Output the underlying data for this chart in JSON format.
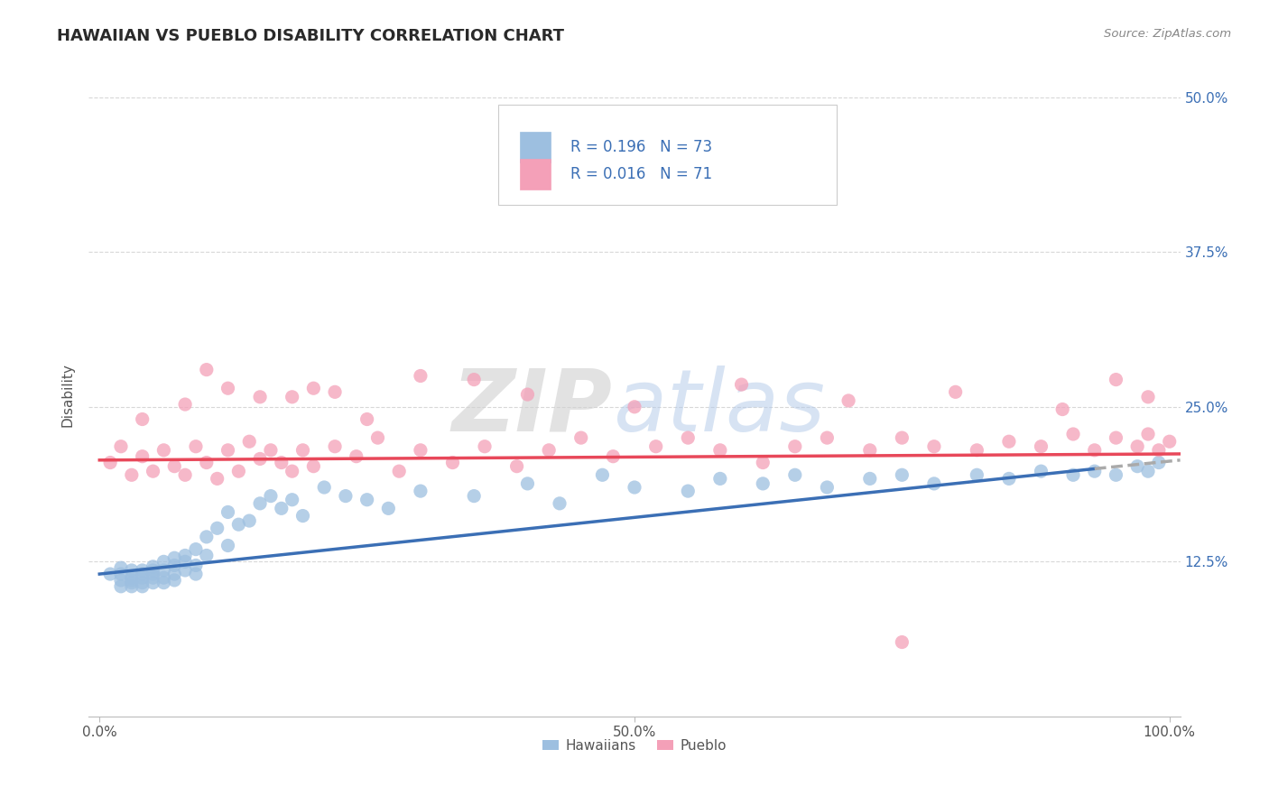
{
  "title": "HAWAIIAN VS PUEBLO DISABILITY CORRELATION CHART",
  "source_text": "Source: ZipAtlas.com",
  "ylabel": "Disability",
  "watermark_zip": "ZIP",
  "watermark_atlas": "atlas",
  "hawaiian_color": "#9dbfe0",
  "pueblo_color": "#f4a0b8",
  "hawaiian_line_color": "#3b6fb5",
  "pueblo_line_color": "#e8485a",
  "legend_text_color": "#3b6fb5",
  "r_hawaiian": 0.196,
  "n_hawaiian": 73,
  "r_pueblo": 0.016,
  "n_pueblo": 71,
  "xlim": [
    -0.01,
    1.01
  ],
  "ylim": [
    0.0,
    0.52
  ],
  "yticks": [
    0.125,
    0.25,
    0.375,
    0.5
  ],
  "ytick_labels": [
    "12.5%",
    "25.0%",
    "37.5%",
    "50.0%"
  ],
  "xtick_positions": [
    0.0,
    0.5,
    1.0
  ],
  "xtick_labels": [
    "0.0%",
    "50.0%",
    "100.0%"
  ],
  "background_color": "#ffffff",
  "grid_color": "#d8d8d8",
  "hawaiian_x": [
    0.01,
    0.02,
    0.02,
    0.02,
    0.02,
    0.03,
    0.03,
    0.03,
    0.03,
    0.03,
    0.04,
    0.04,
    0.04,
    0.04,
    0.04,
    0.05,
    0.05,
    0.05,
    0.05,
    0.05,
    0.06,
    0.06,
    0.06,
    0.06,
    0.07,
    0.07,
    0.07,
    0.07,
    0.08,
    0.08,
    0.08,
    0.09,
    0.09,
    0.09,
    0.1,
    0.1,
    0.11,
    0.12,
    0.12,
    0.13,
    0.14,
    0.15,
    0.16,
    0.17,
    0.18,
    0.19,
    0.21,
    0.23,
    0.25,
    0.27,
    0.3,
    0.35,
    0.4,
    0.43,
    0.47,
    0.5,
    0.55,
    0.58,
    0.62,
    0.65,
    0.68,
    0.72,
    0.75,
    0.78,
    0.82,
    0.85,
    0.88,
    0.91,
    0.93,
    0.95,
    0.97,
    0.98,
    0.99
  ],
  "hawaiian_y": [
    0.115,
    0.12,
    0.11,
    0.105,
    0.115,
    0.108,
    0.112,
    0.105,
    0.118,
    0.11,
    0.115,
    0.108,
    0.112,
    0.118,
    0.105,
    0.115,
    0.108,
    0.112,
    0.118,
    0.121,
    0.118,
    0.125,
    0.112,
    0.108,
    0.122,
    0.128,
    0.115,
    0.11,
    0.13,
    0.118,
    0.125,
    0.135,
    0.122,
    0.115,
    0.145,
    0.13,
    0.152,
    0.165,
    0.138,
    0.155,
    0.158,
    0.172,
    0.178,
    0.168,
    0.175,
    0.162,
    0.185,
    0.178,
    0.175,
    0.168,
    0.182,
    0.178,
    0.188,
    0.172,
    0.195,
    0.185,
    0.182,
    0.192,
    0.188,
    0.195,
    0.185,
    0.192,
    0.195,
    0.188,
    0.195,
    0.192,
    0.198,
    0.195,
    0.198,
    0.195,
    0.202,
    0.198,
    0.205
  ],
  "pueblo_x": [
    0.01,
    0.02,
    0.03,
    0.04,
    0.05,
    0.06,
    0.07,
    0.08,
    0.09,
    0.1,
    0.11,
    0.12,
    0.13,
    0.14,
    0.15,
    0.16,
    0.17,
    0.18,
    0.19,
    0.2,
    0.22,
    0.24,
    0.26,
    0.28,
    0.3,
    0.33,
    0.36,
    0.39,
    0.42,
    0.45,
    0.48,
    0.52,
    0.55,
    0.58,
    0.62,
    0.65,
    0.68,
    0.72,
    0.75,
    0.78,
    0.82,
    0.85,
    0.88,
    0.91,
    0.93,
    0.95,
    0.97,
    0.98,
    0.99,
    1.0,
    0.1,
    0.15,
    0.2,
    0.25,
    0.3,
    0.4,
    0.5,
    0.6,
    0.7,
    0.8,
    0.9,
    0.95,
    0.98,
    0.04,
    0.08,
    0.12,
    0.18,
    0.22,
    0.35,
    0.55,
    0.75
  ],
  "pueblo_y": [
    0.205,
    0.218,
    0.195,
    0.21,
    0.198,
    0.215,
    0.202,
    0.195,
    0.218,
    0.205,
    0.192,
    0.215,
    0.198,
    0.222,
    0.208,
    0.215,
    0.205,
    0.198,
    0.215,
    0.202,
    0.218,
    0.21,
    0.225,
    0.198,
    0.215,
    0.205,
    0.218,
    0.202,
    0.215,
    0.225,
    0.21,
    0.218,
    0.225,
    0.215,
    0.205,
    0.218,
    0.225,
    0.215,
    0.225,
    0.218,
    0.215,
    0.222,
    0.218,
    0.228,
    0.215,
    0.225,
    0.218,
    0.228,
    0.215,
    0.222,
    0.28,
    0.258,
    0.265,
    0.24,
    0.275,
    0.26,
    0.25,
    0.268,
    0.255,
    0.262,
    0.248,
    0.272,
    0.258,
    0.24,
    0.252,
    0.265,
    0.258,
    0.262,
    0.272,
    0.43,
    0.06
  ],
  "trend_h_x0": 0.0,
  "trend_h_x1": 0.93,
  "trend_h_y0": 0.115,
  "trend_h_y1": 0.2,
  "trend_h_dash_x0": 0.93,
  "trend_h_dash_x1": 1.01,
  "trend_h_dash_y0": 0.2,
  "trend_h_dash_y1": 0.207,
  "trend_p_x0": 0.0,
  "trend_p_x1": 1.01,
  "trend_p_y0": 0.207,
  "trend_p_y1": 0.212
}
